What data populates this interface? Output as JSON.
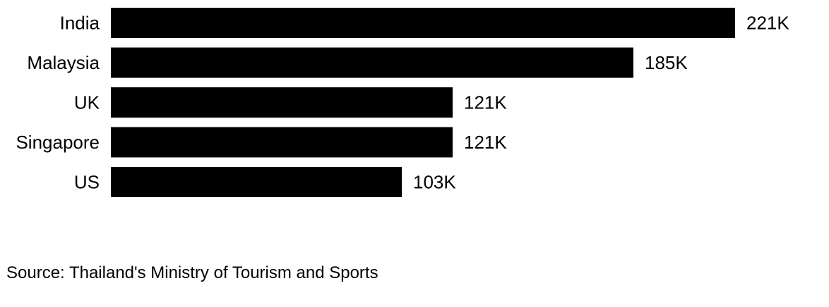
{
  "chart_data": {
    "type": "bar",
    "orientation": "horizontal",
    "categories": [
      "India",
      "Malaysia",
      "UK",
      "Singapore",
      "US"
    ],
    "values": [
      221,
      185,
      121,
      121,
      103
    ],
    "value_labels": [
      "221K",
      "185K",
      "121K",
      "121K",
      "103K"
    ],
    "bar_color": "#000000",
    "xlim": [
      0,
      221
    ],
    "grid": false,
    "legend": "none"
  },
  "source": "Source: Thailand's Ministry of Tourism and Sports"
}
